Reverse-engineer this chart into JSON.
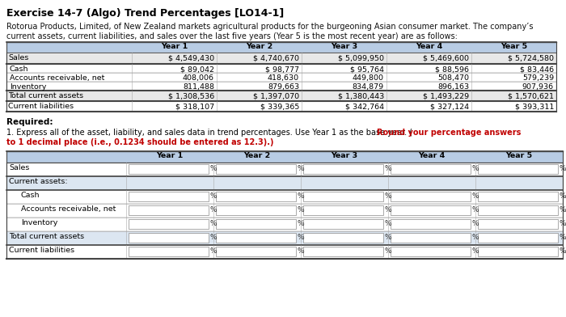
{
  "title": "Exercise 14-7 (Algo) Trend Percentages [LO14-1]",
  "desc1": "Rotorua Products, Limited, of New Zealand markets agricultural products for the burgeoning Asian consumer market. The company’s",
  "desc2": "current assets, current liabilities, and sales over the last five years (Year 5 is the most recent year) are as follows:",
  "top_headers": [
    "",
    "Year 1",
    "Year 2",
    "Year 3",
    "Year 4",
    "Year 5"
  ],
  "top_rows": [
    [
      "Sales",
      "$ 4,549,430",
      "$ 4,740,670",
      "$ 5,099,950",
      "$ 5,469,600",
      "$ 5,724,580"
    ],
    [
      "Cash",
      "$ 89,042",
      "$ 98,777",
      "$ 95,764",
      "$ 88,596",
      "$ 83,446"
    ],
    [
      "Accounts receivable, net",
      "408,006",
      "418,630",
      "449,800",
      "508,470",
      "579,239"
    ],
    [
      "Inventory",
      "811,488",
      "879,663",
      "834,879",
      "896,163",
      "907,936"
    ],
    [
      "Total current assets",
      "$ 1,308,536",
      "$ 1,397,070",
      "$ 1,380,443",
      "$ 1,493,229",
      "$ 1,570,621"
    ],
    [
      "Current liabilities",
      "$ 318,107",
      "$ 339,365",
      "$ 342,764",
      "$ 327,124",
      "$ 393,311"
    ]
  ],
  "req_label": "Required:",
  "req_normal": "1. Express all of the asset, liability, and sales data in trend percentages. Use Year 1 as the base year. (",
  "req_bold_red_1": "Round your percentage answers",
  "req_bold_red_2": "to 1 decimal place (i.e., 0.1234 should be entered as 12.3).)",
  "bot_headers": [
    "",
    "Year 1",
    "Year 2",
    "Year 3",
    "Year 4",
    "Year 5"
  ],
  "bot_rows": [
    [
      "Sales",
      true
    ],
    [
      "Current assets:",
      false
    ],
    [
      "Cash",
      true,
      true
    ],
    [
      "Accounts receivable, net",
      true,
      true
    ],
    [
      "Inventory",
      true,
      true
    ],
    [
      "Total current assets",
      true
    ],
    [
      "Current liabilities",
      true
    ]
  ],
  "hdr_bg": "#b8cce4",
  "sales_bg": "#e8e8e8",
  "total_bg": "#e8e8e8",
  "white_bg": "#ffffff",
  "sub_bg": "#dce6f1",
  "red": "#c00000",
  "dark": "#444444",
  "mid": "#888888",
  "light": "#aaaaaa"
}
